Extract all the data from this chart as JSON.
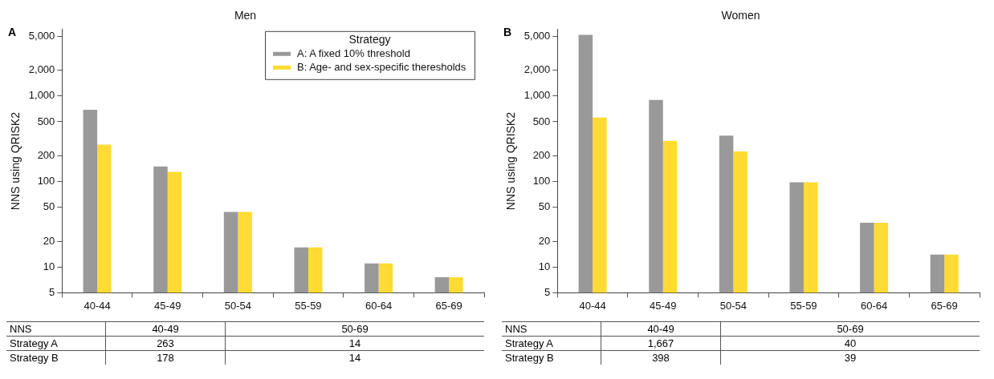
{
  "chart_data": [
    {
      "type": "bar",
      "title": "Men",
      "ylabel": "NNS using QRISK2",
      "categories": [
        "40-44",
        "45-49",
        "50-54",
        "55-59",
        "60-64",
        "65-69"
      ],
      "series": [
        {
          "name": "A: A fixed 10% threshold",
          "color": "#999999",
          "values": [
            690,
            150,
            44,
            17,
            11,
            7.6
          ]
        },
        {
          "name": "B: Age- and sex-specific theresholds",
          "color": "#ffdb33",
          "values": [
            270,
            130,
            44,
            17,
            11,
            7.6
          ]
        }
      ],
      "log": "y",
      "ylim": [
        5,
        6000
      ],
      "yticks": [
        5,
        10,
        20,
        50,
        100,
        200,
        500,
        {
          "value": 1000,
          "label": "1,000"
        },
        {
          "value": 2000,
          "label": "2,000"
        },
        {
          "value": 5000,
          "label": "5,000"
        }
      ],
      "grid": false,
      "legend": "top right",
      "legend_title": "Strategy",
      "annotations": [
        "A",
        "NNS",
        "40-49",
        "50-69",
        "Strategy A",
        "263",
        "14",
        "Strategy B",
        "178",
        "14"
      ]
    },
    {
      "type": "bar",
      "title": "Women",
      "ylabel": "NNS using QRISK2",
      "categories": [
        "40-44",
        "45-49",
        "50-54",
        "55-59",
        "60-64",
        "65-69"
      ],
      "series": [
        {
          "color": "#999999",
          "values": [
            5200,
            900,
            345,
            98,
            33,
            14
          ]
        },
        {
          "color": "#ffdb33",
          "values": [
            560,
            300,
            225,
            98,
            33,
            14
          ]
        }
      ],
      "log": "y",
      "ylim": [
        5,
        6000
      ],
      "yticks": [
        5,
        10,
        20,
        50,
        100,
        200,
        500,
        {
          "value": 1000,
          "label": "1,000"
        },
        {
          "value": 2000,
          "label": "2,000"
        },
        {
          "value": 5000,
          "label": "5,000"
        }
      ],
      "grid": false,
      "legend": false,
      "annotations": [
        "B",
        "NNS",
        "40-49",
        "50-69",
        "Strategy A",
        "1,667",
        "40",
        "Strategy B",
        "398",
        "39"
      ]
    }
  ]
}
